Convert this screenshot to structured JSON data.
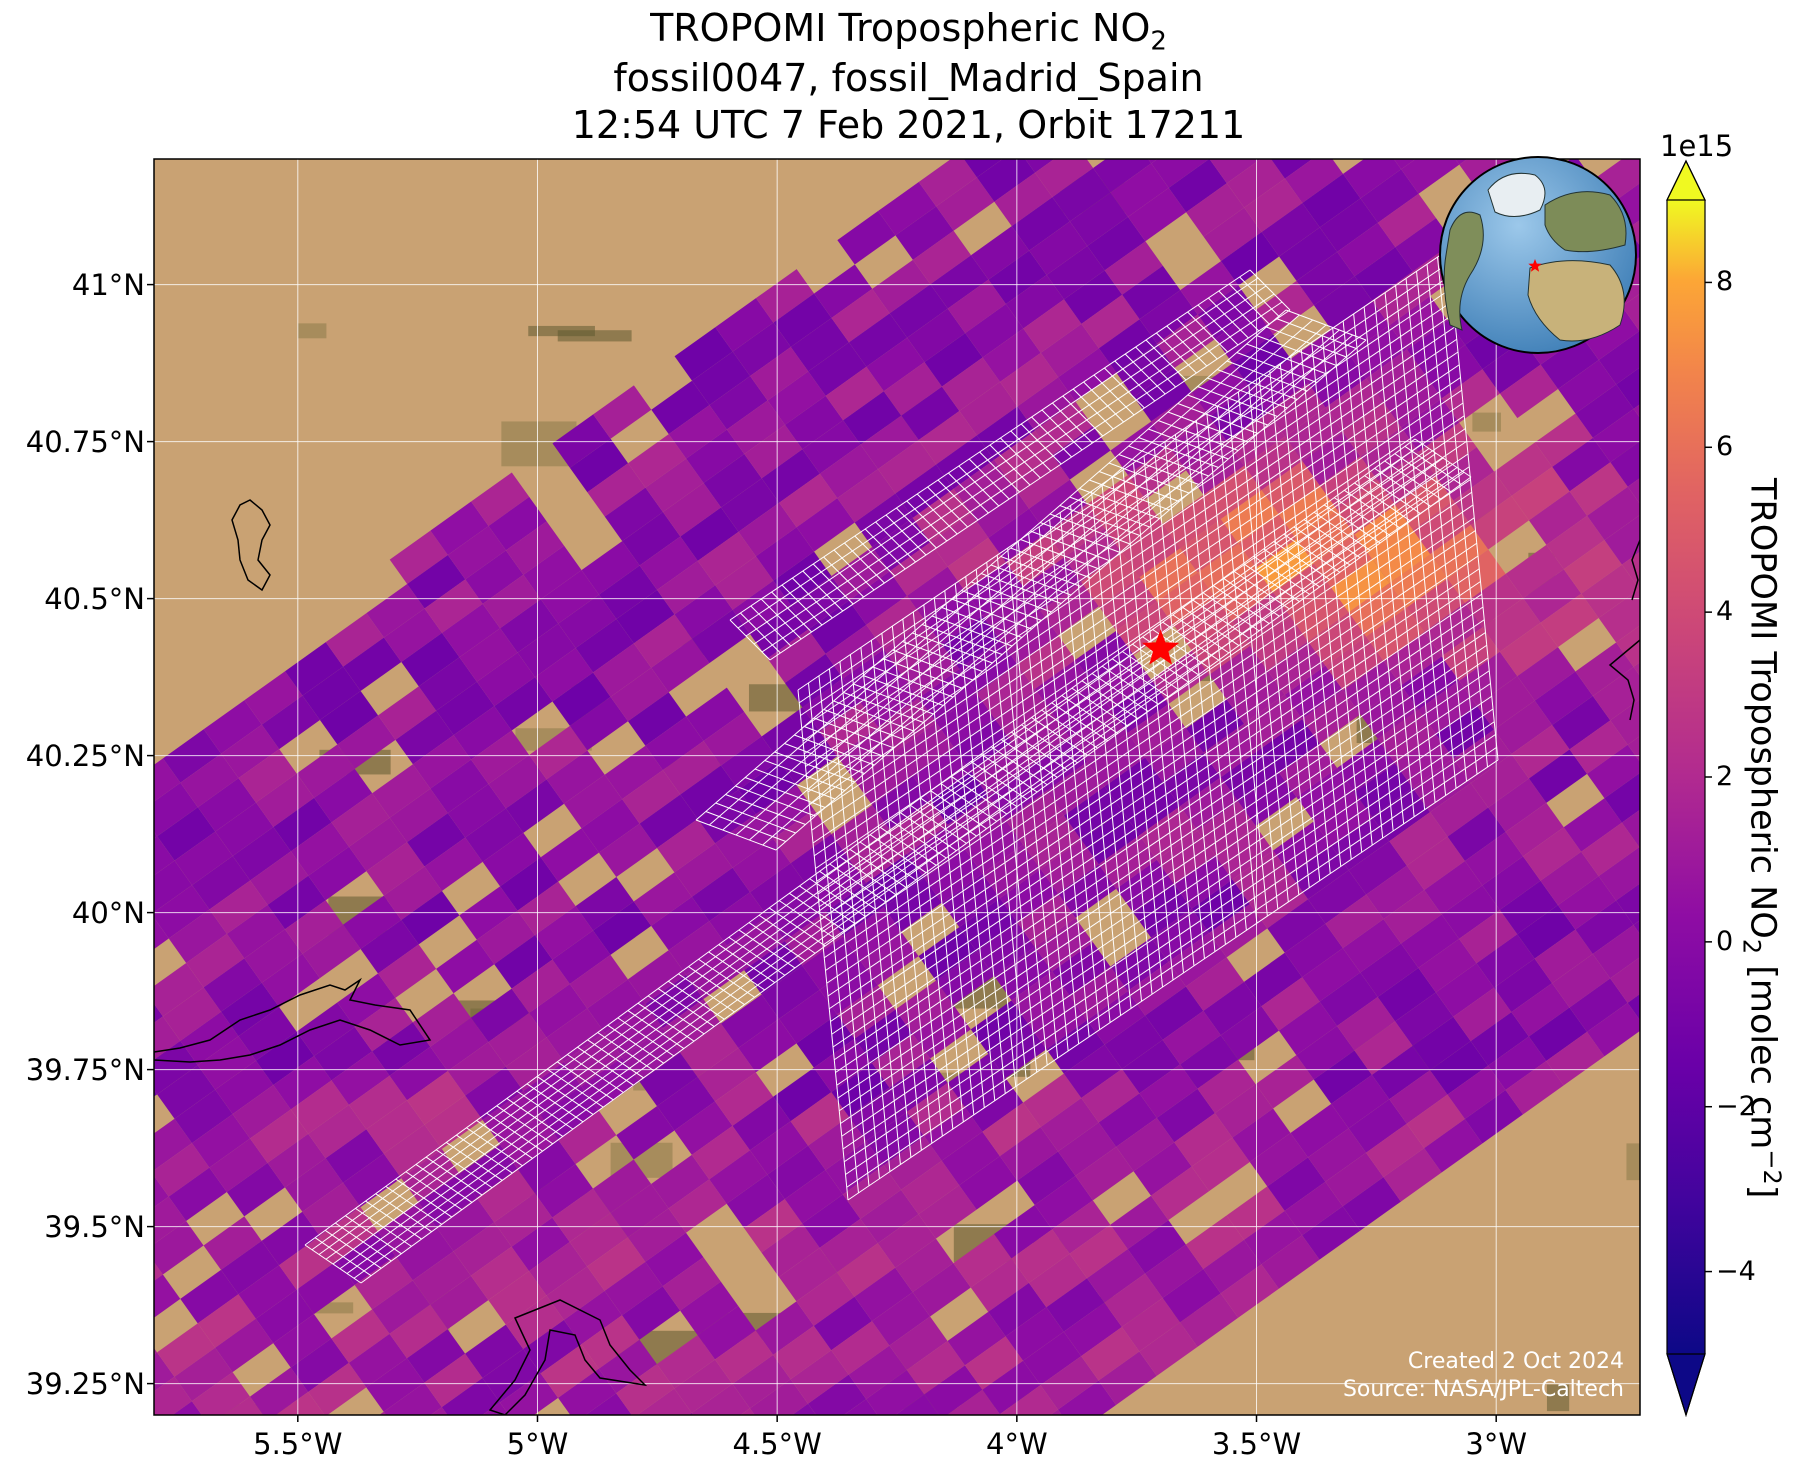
{
  "title": {
    "line1_prefix": "TROPOMI Tropospheric NO",
    "line1_sub": "2",
    "line2": "fossil0047, fossil_Madrid_Spain",
    "line3": "12:54 UTC 7 Feb 2021, Orbit 17211"
  },
  "map": {
    "lon_range": [
      -5.8,
      -2.7
    ],
    "lat_range": [
      39.2,
      41.2
    ],
    "lon_ticks": [
      {
        "value": -5.5,
        "label": "5.5°W"
      },
      {
        "value": -5.0,
        "label": "5°W"
      },
      {
        "value": -4.5,
        "label": "4.5°W"
      },
      {
        "value": -4.0,
        "label": "4°W"
      },
      {
        "value": -3.5,
        "label": "3.5°W"
      },
      {
        "value": -3.0,
        "label": "3°W"
      }
    ],
    "lat_ticks": [
      {
        "value": 41.0,
        "label": "41°N"
      },
      {
        "value": 40.75,
        "label": "40.75°N"
      },
      {
        "value": 40.5,
        "label": "40.5°N"
      },
      {
        "value": 40.25,
        "label": "40.25°N"
      },
      {
        "value": 40.0,
        "label": "40°N"
      },
      {
        "value": 39.75,
        "label": "39.75°N"
      },
      {
        "value": 39.5,
        "label": "39.5°N"
      },
      {
        "value": 39.25,
        "label": "39.25°N"
      }
    ],
    "target": {
      "lon": -3.7,
      "lat": 40.42,
      "marker": "red-star",
      "color": "#ff0000"
    },
    "gridlines": true
  },
  "colorbar": {
    "colormap": "plasma",
    "range": [
      -5,
      9
    ],
    "exponent_label": "1e15",
    "ticks": [
      {
        "value": -4,
        "label": "−4"
      },
      {
        "value": -2,
        "label": "−2"
      },
      {
        "value": 0,
        "label": "0"
      },
      {
        "value": 2,
        "label": "2"
      },
      {
        "value": 4,
        "label": "4"
      },
      {
        "value": 6,
        "label": "6"
      },
      {
        "value": 8,
        "label": "8"
      }
    ],
    "label_prefix": "TROPOMI Tropospheric NO",
    "label_sub": "2",
    "label_mid": " [molec cm",
    "label_sup": "−2",
    "label_end": "]",
    "extend": "both"
  },
  "credits": {
    "line1": "Created 2 Oct 2024",
    "line2": "Source: NASA/JPL-Caltech"
  },
  "colors": {
    "land_light": "#c9a273",
    "land_dark": "#5e5a30",
    "grid": "#ffffff",
    "target_grid": "#ffffff",
    "coast": "#000000",
    "ocean": "#6aa7d6"
  }
}
